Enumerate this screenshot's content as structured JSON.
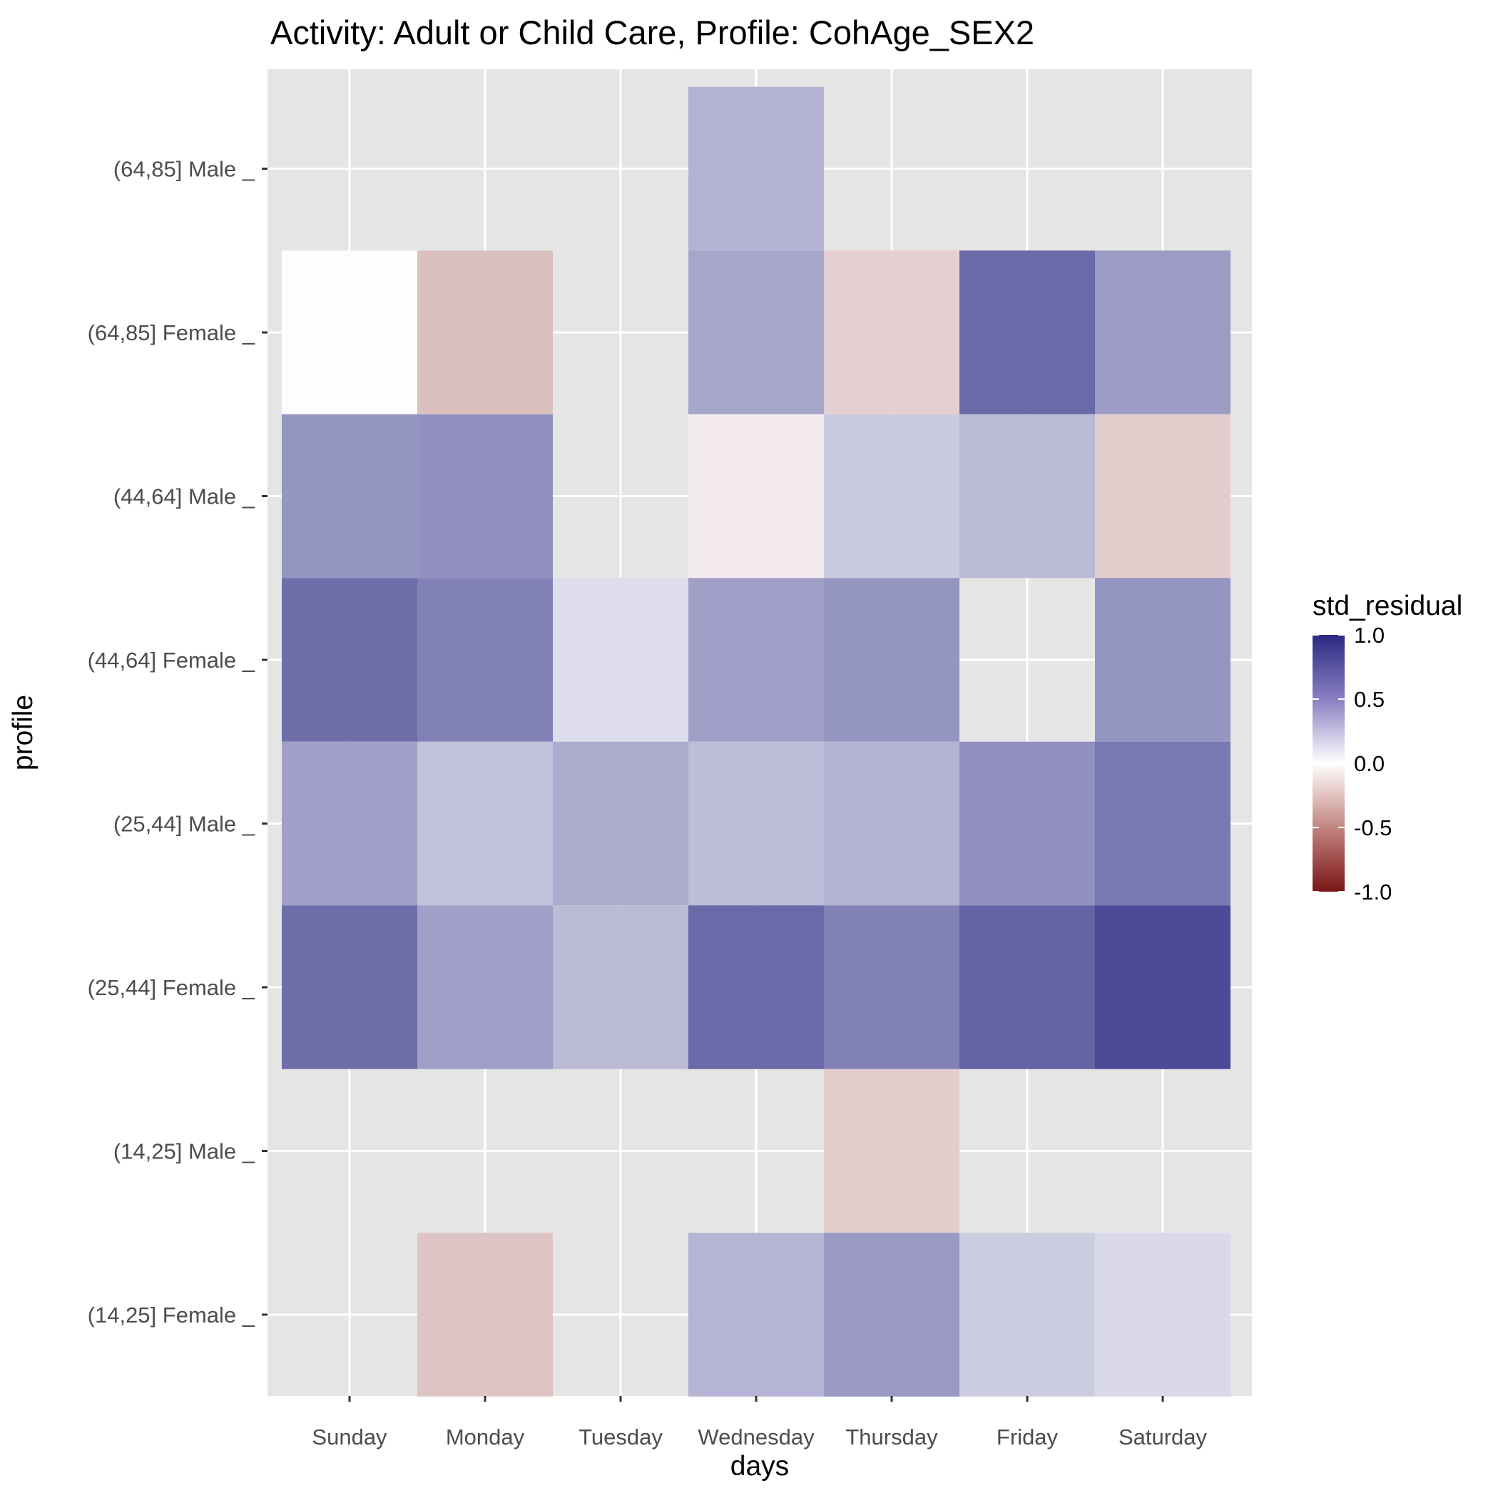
{
  "chart_data": {
    "type": "heatmap",
    "title": "Activity: Adult or Child Care, Profile: CohAge_SEX2",
    "xlabel": "days",
    "ylabel": "profile",
    "x_categories": [
      "Sunday",
      "Monday",
      "Tuesday",
      "Wednesday",
      "Thursday",
      "Friday",
      "Saturday"
    ],
    "y_categories": [
      "(64,85] Male _",
      "(64,85] Female _",
      "(44,64] Male _",
      "(44,64] Female _",
      "(25,44] Male _",
      "(25,44] Female _",
      "(14,25] Male _",
      "(14,25] Female _"
    ],
    "values": [
      [
        null,
        null,
        null,
        0.36,
        null,
        null,
        null
      ],
      [
        0.01,
        -0.27,
        null,
        0.42,
        -0.2,
        0.7,
        0.47
      ],
      [
        0.5,
        0.52,
        null,
        -0.08,
        0.25,
        0.32,
        -0.21
      ],
      [
        0.68,
        0.59,
        0.16,
        0.45,
        0.5,
        null,
        0.5
      ],
      [
        0.45,
        0.29,
        0.39,
        0.31,
        0.36,
        0.52,
        0.63
      ],
      [
        0.68,
        0.45,
        0.32,
        0.7,
        0.59,
        0.73,
        0.85
      ],
      [
        null,
        null,
        null,
        null,
        -0.21,
        null,
        null
      ],
      [
        null,
        -0.25,
        null,
        0.35,
        0.48,
        0.24,
        0.18
      ]
    ],
    "legend": {
      "title": "std_residual",
      "placement": "right",
      "ticks": [
        1.0,
        0.5,
        0.0,
        -0.5,
        -1.0
      ],
      "tick_labels": [
        "1.0",
        "0.5",
        "0.0",
        "-0.5",
        "-1.0"
      ],
      "range": [
        -1.0,
        1.0
      ]
    },
    "colors": {
      "high": "#2b2a83",
      "mid": "#ffffff",
      "low": "#7a1517",
      "panel_background": "#e5e5e5",
      "grid": "#ffffff"
    },
    "grid": true
  }
}
